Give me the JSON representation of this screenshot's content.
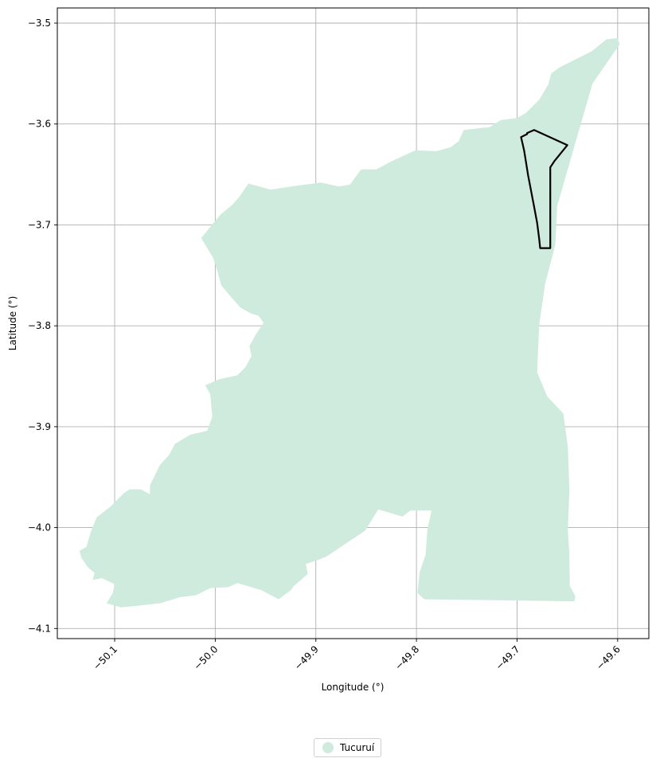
{
  "chart_data": {
    "type": "map",
    "xlabel": "Longitude (°)",
    "ylabel": "Latitude (°)",
    "xlim": [
      -50.157,
      -49.569
    ],
    "ylim": [
      -4.11,
      -3.485
    ],
    "grid": true,
    "x_ticks": [
      {
        "value": -50.1,
        "label": "−50.1"
      },
      {
        "value": -50.0,
        "label": "−50.0"
      },
      {
        "value": -49.9,
        "label": "−49.9"
      },
      {
        "value": -49.8,
        "label": "−49.8"
      },
      {
        "value": -49.7,
        "label": "−49.7"
      },
      {
        "value": -49.6,
        "label": "−49.6"
      }
    ],
    "y_ticks": [
      {
        "value": -3.5,
        "label": "−3.5"
      },
      {
        "value": -3.6,
        "label": "−3.6"
      },
      {
        "value": -3.7,
        "label": "−3.7"
      },
      {
        "value": -3.8,
        "label": "−3.8"
      },
      {
        "value": -3.9,
        "label": "−3.9"
      },
      {
        "value": -4.0,
        "label": "−4.0"
      },
      {
        "value": -4.1,
        "label": "−4.1"
      }
    ],
    "regions": [
      {
        "name": "Tucuruí",
        "color": "#cfebde",
        "coordinates": [
          [
            -49.598,
            -3.521
          ],
          [
            -49.625,
            -3.56
          ],
          [
            -49.643,
            -3.622
          ],
          [
            -49.66,
            -3.681
          ],
          [
            -49.662,
            -3.72
          ],
          [
            -49.672,
            -3.758
          ],
          [
            -49.678,
            -3.799
          ],
          [
            -49.68,
            -3.846
          ],
          [
            -49.67,
            -3.87
          ],
          [
            -49.654,
            -3.887
          ],
          [
            -49.6495,
            -3.92
          ],
          [
            -49.648,
            -3.963
          ],
          [
            -49.6495,
            -4.002
          ],
          [
            -49.648,
            -4.027
          ],
          [
            -49.6475,
            -4.058
          ],
          [
            -49.642,
            -4.068
          ],
          [
            -49.643,
            -4.073
          ],
          [
            -49.792,
            -4.071
          ],
          [
            -49.799,
            -4.065
          ],
          [
            -49.797,
            -4.045
          ],
          [
            -49.791,
            -4.027
          ],
          [
            -49.789,
            -4.001
          ],
          [
            -49.785,
            -3.983
          ],
          [
            -49.806,
            -3.983
          ],
          [
            -49.814,
            -3.989
          ],
          [
            -49.838,
            -3.982
          ],
          [
            -49.851,
            -4.003
          ],
          [
            -49.89,
            -4.029
          ],
          [
            -49.898,
            -4.032
          ],
          [
            -49.91,
            -4.036
          ],
          [
            -49.908,
            -4.046
          ],
          [
            -49.922,
            -4.058
          ],
          [
            -49.925,
            -4.062
          ],
          [
            -49.937,
            -4.071
          ],
          [
            -49.954,
            -4.062
          ],
          [
            -49.978,
            -4.055
          ],
          [
            -49.987,
            -4.059
          ],
          [
            -50.005,
            -4.06
          ],
          [
            -50.019,
            -4.067
          ],
          [
            -50.035,
            -4.069
          ],
          [
            -50.055,
            -4.075
          ],
          [
            -50.082,
            -4.078
          ],
          [
            -50.094,
            -4.079
          ],
          [
            -50.108,
            -4.075
          ],
          [
            -50.102,
            -4.065
          ],
          [
            -50.1,
            -4.056
          ],
          [
            -50.113,
            -4.05
          ],
          [
            -50.122,
            -4.052
          ],
          [
            -50.12,
            -4.045
          ],
          [
            -50.127,
            -4.039
          ],
          [
            -50.133,
            -4.03
          ],
          [
            -50.135,
            -4.023
          ],
          [
            -50.128,
            -4.019
          ],
          [
            -50.124,
            -4.005
          ],
          [
            -50.118,
            -3.99
          ],
          [
            -50.104,
            -3.979
          ],
          [
            -50.091,
            -3.966
          ],
          [
            -50.085,
            -3.962
          ],
          [
            -50.074,
            -3.962
          ],
          [
            -50.065,
            -3.967
          ],
          [
            -50.065,
            -3.958
          ],
          [
            -50.06,
            -3.948
          ],
          [
            -50.055,
            -3.938
          ],
          [
            -50.046,
            -3.928
          ],
          [
            -50.04,
            -3.917
          ],
          [
            -50.025,
            -3.908
          ],
          [
            -50.008,
            -3.904
          ],
          [
            -50.003,
            -3.89
          ],
          [
            -50.005,
            -3.868
          ],
          [
            -50.01,
            -3.859
          ],
          [
            -49.996,
            -3.853
          ],
          [
            -49.978,
            -3.849
          ],
          [
            -49.97,
            -3.841
          ],
          [
            -49.964,
            -3.83
          ],
          [
            -49.966,
            -3.82
          ],
          [
            -49.96,
            -3.809
          ],
          [
            -49.952,
            -3.797
          ],
          [
            -49.957,
            -3.79
          ],
          [
            -49.964,
            -3.788
          ],
          [
            -49.975,
            -3.782
          ],
          [
            -49.983,
            -3.773
          ],
          [
            -49.994,
            -3.76
          ],
          [
            -49.997,
            -3.749
          ],
          [
            -50.002,
            -3.733
          ],
          [
            -50.014,
            -3.713
          ],
          [
            -49.995,
            -3.69
          ],
          [
            -49.983,
            -3.68
          ],
          [
            -49.976,
            -3.672
          ],
          [
            -49.967,
            -3.659
          ],
          [
            -49.945,
            -3.665
          ],
          [
            -49.918,
            -3.661
          ],
          [
            -49.895,
            -3.658
          ],
          [
            -49.877,
            -3.662
          ],
          [
            -49.866,
            -3.66
          ],
          [
            -49.855,
            -3.645
          ],
          [
            -49.84,
            -3.645
          ],
          [
            -49.825,
            -3.637
          ],
          [
            -49.801,
            -3.626
          ],
          [
            -49.78,
            -3.627
          ],
          [
            -49.766,
            -3.623
          ],
          [
            -49.758,
            -3.617
          ],
          [
            -49.753,
            -3.606
          ],
          [
            -49.727,
            -3.603
          ],
          [
            -49.716,
            -3.596
          ],
          [
            -49.7,
            -3.594
          ],
          [
            -49.691,
            -3.589
          ],
          [
            -49.678,
            -3.576
          ],
          [
            -49.669,
            -3.561
          ],
          [
            -49.666,
            -3.55
          ],
          [
            -49.658,
            -3.544
          ],
          [
            -49.64,
            -3.535
          ],
          [
            -49.626,
            -3.528
          ],
          [
            -49.611,
            -3.516
          ],
          [
            -49.6,
            -3.515
          ]
        ]
      }
    ],
    "outlines": [
      {
        "color": "#000000",
        "coordinates": [
          [
            -49.69,
            -3.609
          ],
          [
            -49.683,
            -3.606
          ],
          [
            -49.65,
            -3.621
          ],
          [
            -49.663,
            -3.637
          ],
          [
            -49.667,
            -3.643
          ],
          [
            -49.667,
            -3.665
          ],
          [
            -49.667,
            -3.684
          ],
          [
            -49.667,
            -3.716
          ],
          [
            -49.667,
            -3.723
          ],
          [
            -49.677,
            -3.723
          ],
          [
            -49.678,
            -3.714
          ],
          [
            -49.68,
            -3.698
          ],
          [
            -49.684,
            -3.677
          ],
          [
            -49.689,
            -3.651
          ],
          [
            -49.693,
            -3.626
          ],
          [
            -49.696,
            -3.613
          ],
          [
            -49.69,
            -3.61
          ]
        ]
      }
    ]
  },
  "legend": {
    "items": [
      {
        "label": "Tucuruí",
        "color": "#cfebde"
      }
    ]
  }
}
